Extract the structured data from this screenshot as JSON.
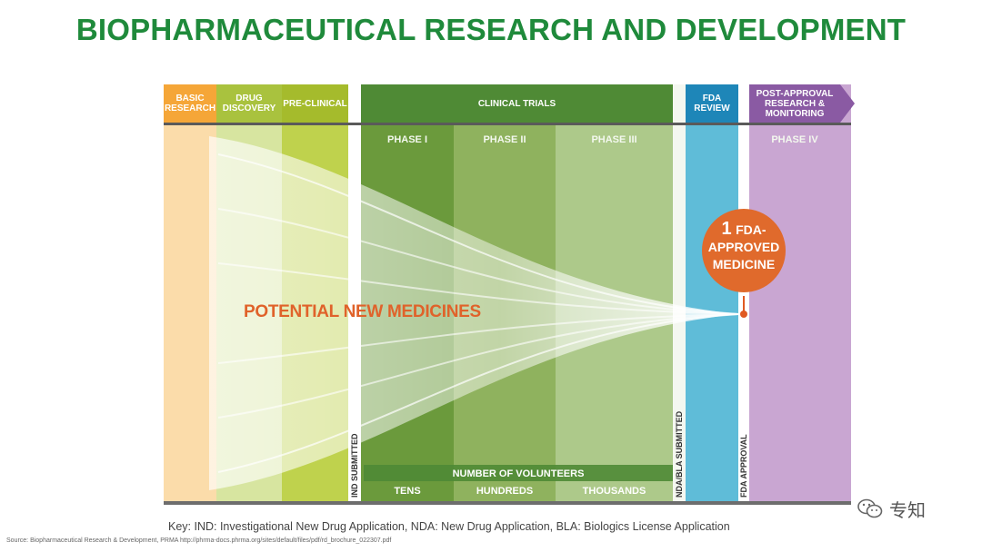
{
  "title": "BIOPHARMACEUTICAL RESEARCH AND DEVELOPMENT",
  "stages": {
    "basic": "BASIC RESEARCH",
    "discovery": "DRUG DISCOVERY",
    "preclinical": "PRE-CLINICAL",
    "clinical": "CLINICAL TRIALS",
    "fda": "FDA REVIEW",
    "post": "POST-APPROVAL RESEARCH & MONITORING"
  },
  "phases": {
    "p1": "PHASE I",
    "p2": "PHASE II",
    "p3": "PHASE III",
    "p4": "PHASE IV"
  },
  "milestones": {
    "ind": "IND SUBMITTED",
    "nda": "NDA/BLA SUBMITTED",
    "approval": "FDA APPROVAL"
  },
  "funnel_label": "POTENTIAL NEW MEDICINES",
  "result": {
    "count": "1",
    "text": "FDA-APPROVED MEDICINE"
  },
  "volunteers": {
    "heading": "NUMBER OF VOLUNTEERS",
    "tens": "TENS",
    "hundreds": "HUNDREDS",
    "thousands": "THOUSANDS"
  },
  "key": "Key: IND: Investigational New Drug Application, NDA: New Drug Application, BLA: Biologics License Application",
  "source": "Source: Biopharmaceutical Research & Development, PRMA    http://phrma-docs.phrma.org/sites/default/files/pdf/rd_brochure_022307.pdf",
  "watermark": "专知",
  "colors": {
    "title": "#1f8a3b",
    "basic": "#f5a638",
    "discovery": "#a9c23e",
    "fda": "#1e86b8",
    "post": "#8a5aa3",
    "medicine": "#e05a22"
  }
}
